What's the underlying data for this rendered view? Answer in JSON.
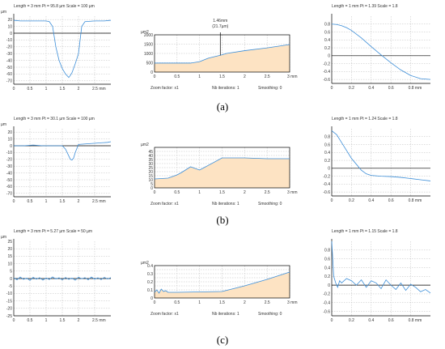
{
  "captions": [
    "(a)",
    "(b)",
    "(c)"
  ],
  "chart_data": [
    {
      "id": "a1",
      "type": "line",
      "header": "Length = 3 mm  Pt = 95.8 µm  Scale = 100 µm",
      "unit_y": "µm",
      "unit_x": "mm",
      "xlim": [
        0,
        3
      ],
      "xticks": [
        0,
        0.5,
        1,
        1.5,
        2,
        2.5
      ],
      "xticklabels": [
        "0",
        "0.5",
        "1",
        "1.5",
        "2",
        "2.5 mm"
      ],
      "ylim": [
        -75,
        25
      ],
      "yticks": [
        20,
        10,
        0,
        -10,
        -20,
        -30,
        -40,
        -50,
        -60,
        -70
      ],
      "x": [
        0,
        0.2,
        0.5,
        0.8,
        1.0,
        1.1,
        1.2,
        1.25,
        1.3,
        1.4,
        1.5,
        1.6,
        1.7,
        1.75,
        1.8,
        1.9,
        2.0,
        2.05,
        2.1,
        2.2,
        2.5,
        2.8,
        3.0
      ],
      "y": [
        19,
        18,
        18,
        18,
        18,
        17,
        10,
        -5,
        -20,
        -40,
        -52,
        -60,
        -65,
        -62,
        -58,
        -45,
        -30,
        -10,
        10,
        17,
        18,
        18,
        19
      ]
    },
    {
      "id": "a2",
      "type": "area",
      "unit_y": "µm2",
      "unit_x": "mm",
      "xlim": [
        0,
        3
      ],
      "xticks": [
        0,
        0.5,
        1,
        1.5,
        2,
        2.5,
        3
      ],
      "xticklabels": [
        "0",
        "0.5",
        "1",
        "1.5",
        "2",
        "2.5",
        "3 mm"
      ],
      "ylim": [
        0,
        2000
      ],
      "yticks": [
        0,
        500,
        1000,
        1500,
        2000
      ],
      "x": [
        0,
        0.8,
        1.0,
        1.2,
        1.46,
        1.6,
        2.0,
        2.5,
        3.0
      ],
      "y": [
        480,
        480,
        560,
        750,
        900,
        1000,
        1150,
        1300,
        1480
      ],
      "cursor_x": 1.46,
      "cursor_label_1": "1.46mm",
      "cursor_label_2": "(21.7µm)",
      "footer": [
        "Zoom factor: x1",
        "Nb iterations: 1",
        "Smoothing: 0"
      ]
    },
    {
      "id": "a3",
      "type": "line",
      "header": "Length = 1 mm  Pt = 1.39   Scale = 1.8",
      "unit_x": "mm",
      "xlim": [
        0,
        1
      ],
      "xticks": [
        0,
        0.2,
        0.4,
        0.6,
        0.8
      ],
      "xticklabels": [
        "0",
        "0.2",
        "0.4",
        "0.6",
        "0.8 mm"
      ],
      "ylim": [
        -0.7,
        1.0
      ],
      "yticks": [
        0.8,
        0.6,
        0.4,
        0.2,
        0,
        -0.2,
        -0.4,
        -0.6
      ],
      "x": [
        0,
        0.05,
        0.1,
        0.15,
        0.2,
        0.3,
        0.4,
        0.5,
        0.6,
        0.7,
        0.8,
        0.9,
        1.0
      ],
      "y": [
        0.8,
        0.79,
        0.76,
        0.71,
        0.64,
        0.45,
        0.23,
        0.02,
        -0.18,
        -0.36,
        -0.5,
        -0.58,
        -0.6
      ]
    },
    {
      "id": "b1",
      "type": "line",
      "header": "Length = 3 mm  Pt = 30.1 µm  Scale = 100 µm",
      "unit_y": "µm",
      "unit_x": "mm",
      "xlim": [
        0,
        3
      ],
      "xticks": [
        0,
        0.5,
        1,
        1.5,
        2,
        2.5
      ],
      "xticklabels": [
        "0",
        "0.5",
        "1",
        "1.5",
        "2",
        "2.5 mm"
      ],
      "ylim": [
        -75,
        25
      ],
      "yticks": [
        20,
        10,
        0,
        -10,
        -20,
        -30,
        -40,
        -50,
        -60,
        -70
      ],
      "x": [
        0,
        0.3,
        0.6,
        0.9,
        1.2,
        1.5,
        1.6,
        1.7,
        1.75,
        1.8,
        1.85,
        1.9,
        2.0,
        2.3,
        2.6,
        2.9,
        3.0
      ],
      "y": [
        0,
        0,
        1,
        0,
        0,
        0,
        -5,
        -15,
        -20,
        -21,
        -18,
        -10,
        2,
        3,
        4,
        5,
        6
      ]
    },
    {
      "id": "b2",
      "type": "area",
      "unit_y": "µm2",
      "unit_x": "mm",
      "xlim": [
        0,
        3
      ],
      "xticks": [
        0,
        0.5,
        1,
        1.5,
        2,
        2.5,
        3
      ],
      "xticklabels": [
        "0",
        "0.5",
        "1",
        "1.5",
        "2",
        "2.5",
        "3 mm"
      ],
      "ylim": [
        0,
        50
      ],
      "yticks": [
        0,
        5,
        10,
        15,
        20,
        25,
        30,
        35,
        40,
        45
      ],
      "x": [
        0,
        0.3,
        0.5,
        0.6,
        0.8,
        1.0,
        1.5,
        2.0,
        2.5,
        3.0
      ],
      "y": [
        11,
        12,
        16,
        19,
        26,
        22,
        37,
        37,
        36,
        36
      ],
      "footer": [
        "Zoom factor: x1",
        "Nb iterations: 1",
        "Smoothing: 0"
      ]
    },
    {
      "id": "b3",
      "type": "line",
      "header": "Length = 1 mm  Pt = 1.24   Scale = 1.8",
      "unit_x": "mm",
      "xlim": [
        0,
        1
      ],
      "xticks": [
        0,
        0.2,
        0.4,
        0.6,
        0.8
      ],
      "xticklabels": [
        "0",
        "0.2",
        "0.4",
        "0.6",
        "0.8 mm"
      ],
      "ylim": [
        -0.7,
        1.0
      ],
      "yticks": [
        0.8,
        0.6,
        0.4,
        0.2,
        0,
        -0.2,
        -0.4,
        -0.6
      ],
      "x": [
        0,
        0.05,
        0.1,
        0.15,
        0.2,
        0.25,
        0.3,
        0.35,
        0.4,
        0.5,
        0.6,
        0.7,
        0.8,
        0.9,
        1.0
      ],
      "y": [
        0.95,
        0.85,
        0.65,
        0.45,
        0.25,
        0.1,
        -0.05,
        -0.14,
        -0.18,
        -0.2,
        -0.21,
        -0.23,
        -0.26,
        -0.29,
        -0.32
      ]
    },
    {
      "id": "c1",
      "type": "line",
      "header": "Length = 3 mm  Pt = 5.27 µm  Scale = 50 µm",
      "unit_y": "µm",
      "unit_x": "mm",
      "xlim": [
        0,
        3
      ],
      "xticks": [
        0,
        0.5,
        1,
        1.5,
        2,
        2.5
      ],
      "xticklabels": [
        "0",
        "0.5",
        "1",
        "1.5",
        "2",
        "2.5 mm"
      ],
      "ylim": [
        -25,
        25
      ],
      "yticks": [
        25,
        20,
        15,
        10,
        5,
        0,
        -5,
        -10,
        -15,
        -20,
        -25
      ],
      "x": [
        0,
        0.1,
        0.2,
        0.3,
        0.4,
        0.5,
        0.6,
        0.7,
        0.8,
        0.9,
        1.0,
        1.1,
        1.2,
        1.3,
        1.4,
        1.5,
        1.6,
        1.7,
        1.8,
        1.9,
        2.0,
        2.1,
        2.2,
        2.3,
        2.4,
        2.5,
        2.6,
        2.7,
        2.8,
        2.9,
        3.0
      ],
      "y": [
        0.5,
        -0.8,
        1.0,
        -0.5,
        0.3,
        -1.2,
        0.8,
        -0.4,
        0.6,
        -1.0,
        0.4,
        -0.6,
        1.1,
        -0.3,
        0.5,
        -0.9,
        0.7,
        -0.5,
        0.3,
        -1.1,
        0.9,
        -0.2,
        0.6,
        -0.8,
        1.0,
        -0.4,
        0.5,
        -0.7,
        0.8,
        -0.3,
        0.6
      ]
    },
    {
      "id": "c2",
      "type": "area",
      "unit_y": "µm2",
      "unit_x": "mm",
      "xlim": [
        0,
        3
      ],
      "xticks": [
        0,
        0.5,
        1,
        1.5,
        2,
        2.5,
        3
      ],
      "xticklabels": [
        "0",
        "0.5",
        "1",
        "1.5",
        "2",
        "2.5",
        "3 mm"
      ],
      "ylim": [
        0,
        0.4
      ],
      "yticks": [
        0,
        0.05,
        0.1,
        0.15,
        0.2,
        0.25,
        0.3,
        0.35,
        0.4
      ],
      "yticklabels": [
        "0",
        "",
        "0.1",
        "",
        "0.2",
        "",
        "0.3",
        "",
        "0.4"
      ],
      "x": [
        0,
        0.05,
        0.1,
        0.15,
        0.2,
        0.25,
        0.3,
        0.5,
        1.0,
        1.5,
        2.0,
        2.5,
        3.0
      ],
      "y": [
        0.07,
        0.1,
        0.06,
        0.11,
        0.08,
        0.09,
        0.07,
        0.07,
        0.075,
        0.08,
        0.15,
        0.23,
        0.32
      ],
      "footer": [
        "Zoom factor: x1",
        "Nb iterations: 1",
        "Smoothing: 0"
      ]
    },
    {
      "id": "c3",
      "type": "line",
      "header": "Length = 1 mm  Pt = 1.15   Scale = 1.8",
      "unit_x": "mm",
      "xlim": [
        0,
        1
      ],
      "xticks": [
        0,
        0.2,
        0.4,
        0.6,
        0.8
      ],
      "xticklabels": [
        "0",
        "0.2",
        "0.4",
        "0.6",
        "0.8 mm"
      ],
      "ylim": [
        -0.7,
        1.0
      ],
      "yticks": [
        0.8,
        0.6,
        0.4,
        0.2,
        0,
        -0.2,
        -0.4,
        -0.6
      ],
      "x": [
        0,
        0.01,
        0.02,
        0.04,
        0.06,
        0.08,
        0.1,
        0.15,
        0.2,
        0.25,
        0.3,
        0.35,
        0.4,
        0.45,
        0.5,
        0.55,
        0.6,
        0.65,
        0.7,
        0.75,
        0.8,
        0.85,
        0.9,
        0.95,
        1.0
      ],
      "y": [
        1.0,
        0.6,
        0.2,
        0.05,
        -0.05,
        0.1,
        0.05,
        0.15,
        0.1,
        0.0,
        0.12,
        -0.05,
        0.1,
        0.05,
        -0.08,
        0.12,
        0.0,
        -0.1,
        0.05,
        -0.12,
        0.02,
        -0.05,
        -0.15,
        -0.1,
        -0.18
      ]
    }
  ]
}
